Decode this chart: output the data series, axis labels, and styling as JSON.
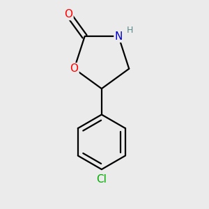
{
  "background_color": "#ebebeb",
  "bond_color": "#000000",
  "bond_width": 1.6,
  "atom_colors": {
    "O": "#ff0000",
    "N": "#0000cc",
    "Cl": "#00aa00",
    "H": "#5a8a8a"
  },
  "font_size_atoms": 11,
  "font_size_h": 9,
  "xlim": [
    -1.0,
    1.0
  ],
  "ylim": [
    -1.55,
    1.35
  ]
}
